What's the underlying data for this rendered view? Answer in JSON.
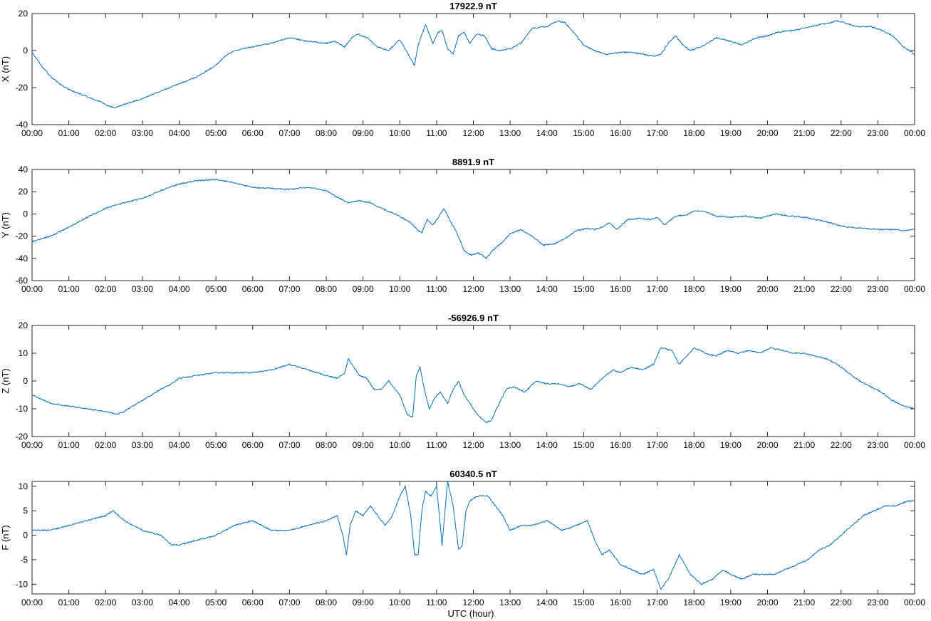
{
  "xlabel": "UTC (hour)",
  "line_color": "#0072BD",
  "chart_data": [
    {
      "type": "line",
      "title": "17922.9 nT",
      "ylabel": "X (nT)",
      "xlim": [
        0,
        24
      ],
      "ylim": [
        -40,
        20
      ],
      "yticks": [
        -40,
        -20,
        0,
        20
      ],
      "xticks": [
        "00:00",
        "01:00",
        "02:00",
        "03:00",
        "04:00",
        "05:00",
        "06:00",
        "07:00",
        "08:00",
        "09:00",
        "10:00",
        "11:00",
        "12:00",
        "13:00",
        "14:00",
        "15:00",
        "16:00",
        "17:00",
        "18:00",
        "19:00",
        "20:00",
        "21:00",
        "22:00",
        "23:00",
        "00:00"
      ],
      "series": [
        {
          "x": [
            0,
            0.25,
            0.5,
            0.75,
            1,
            1.5,
            1.9,
            2.1,
            2.25,
            2.5,
            3,
            3.5,
            4,
            4.5,
            5,
            5.25,
            5.5,
            6,
            6.5,
            7,
            7.5,
            8,
            8.25,
            8.5,
            8.7,
            8.85,
            9.1,
            9.4,
            9.7,
            10,
            10.4,
            10.5,
            10.7,
            10.9,
            11.05,
            11.15,
            11.3,
            11.45,
            11.6,
            11.75,
            11.9,
            12.1,
            12.3,
            12.5,
            12.7,
            13,
            13.3,
            13.6,
            14,
            14.3,
            14.5,
            14.8,
            15,
            15.3,
            15.6,
            16,
            16.3,
            16.6,
            16.9,
            17.1,
            17.3,
            17.5,
            17.7,
            17.9,
            18.3,
            18.6,
            19,
            19.3,
            19.7,
            20,
            20.3,
            20.7,
            21,
            21.4,
            21.7,
            21.9,
            22.1,
            22.4,
            22.8,
            23.1,
            23.4,
            23.7,
            24
          ],
          "y": [
            -1,
            -8,
            -14,
            -18,
            -21,
            -25,
            -28,
            -30,
            -31,
            -29,
            -26,
            -22,
            -18,
            -14,
            -8,
            -3,
            0,
            2,
            4,
            7,
            5,
            4,
            5,
            2,
            7,
            9,
            7,
            2,
            0,
            6,
            -8,
            3,
            14,
            4,
            10,
            11,
            1,
            -2,
            8,
            10,
            4,
            9,
            8,
            1,
            0,
            1,
            4,
            12,
            13,
            16,
            15,
            8,
            3,
            0,
            -2,
            -1,
            -1,
            -2,
            -3,
            -2,
            4,
            8,
            3,
            0,
            3,
            7,
            5,
            3,
            7,
            8,
            10,
            11,
            12,
            14,
            15,
            16,
            15,
            13,
            13,
            11,
            8,
            2,
            -2
          ]
        }
      ]
    },
    {
      "type": "line",
      "title": "8891.9 nT",
      "ylabel": "Y (nT)",
      "xlim": [
        0,
        24
      ],
      "ylim": [
        -60,
        40
      ],
      "yticks": [
        -60,
        -40,
        -20,
        0,
        20,
        40
      ],
      "xticks": [
        "00:00",
        "01:00",
        "02:00",
        "03:00",
        "04:00",
        "05:00",
        "06:00",
        "07:00",
        "08:00",
        "09:00",
        "10:00",
        "11:00",
        "12:00",
        "13:00",
        "14:00",
        "15:00",
        "16:00",
        "17:00",
        "18:00",
        "19:00",
        "20:00",
        "21:00",
        "22:00",
        "23:00",
        "00:00"
      ],
      "series": [
        {
          "x": [
            0,
            0.5,
            1,
            1.5,
            2,
            2.5,
            3,
            3.5,
            4,
            4.5,
            5,
            5.5,
            6,
            6.5,
            7,
            7.5,
            8,
            8.3,
            8.6,
            8.9,
            9.2,
            9.5,
            10,
            10.3,
            10.5,
            10.6,
            10.75,
            10.9,
            11.05,
            11.2,
            11.35,
            11.55,
            11.75,
            11.95,
            12.15,
            12.35,
            12.55,
            12.8,
            13,
            13.3,
            13.6,
            13.9,
            14.2,
            14.5,
            14.8,
            15.1,
            15.3,
            15.5,
            15.7,
            15.9,
            16.2,
            16.5,
            16.8,
            17,
            17.2,
            17.5,
            17.8,
            18,
            18.3,
            18.6,
            19,
            19.4,
            19.8,
            20.2,
            20.6,
            21,
            21.3,
            21.6,
            21.9,
            22.2,
            22.6,
            23,
            23.4,
            23.7,
            24
          ],
          "y": [
            -25,
            -20,
            -12,
            -3,
            5,
            10,
            14,
            21,
            27,
            30,
            31,
            28,
            24,
            23,
            22,
            24,
            21,
            15,
            10,
            12,
            10,
            5,
            -2,
            -8,
            -15,
            -17,
            -5,
            -10,
            -3,
            5,
            -5,
            -17,
            -33,
            -37,
            -35,
            -40,
            -32,
            -25,
            -18,
            -14,
            -20,
            -28,
            -27,
            -22,
            -15,
            -13,
            -14,
            -12,
            -8,
            -14,
            -5,
            -4,
            -5,
            -3,
            -10,
            -2,
            -1,
            3,
            2,
            -2,
            -3,
            -2,
            -4,
            0,
            -2,
            -3,
            -5,
            -7,
            -10,
            -12,
            -13,
            -14,
            -14,
            -15,
            -14
          ]
        }
      ]
    },
    {
      "type": "line",
      "title": "-56926.9 nT",
      "ylabel": "Z (nT)",
      "xlim": [
        0,
        24
      ],
      "ylim": [
        -20,
        20
      ],
      "yticks": [
        -20,
        -10,
        0,
        10,
        20
      ],
      "xticks": [
        "00:00",
        "01:00",
        "02:00",
        "03:00",
        "04:00",
        "05:00",
        "06:00",
        "07:00",
        "08:00",
        "09:00",
        "10:00",
        "11:00",
        "12:00",
        "13:00",
        "14:00",
        "15:00",
        "16:00",
        "17:00",
        "18:00",
        "19:00",
        "20:00",
        "21:00",
        "22:00",
        "23:00",
        "00:00"
      ],
      "series": [
        {
          "x": [
            0,
            0.5,
            1,
            1.5,
            2,
            2.3,
            2.5,
            3,
            3.5,
            3.8,
            4,
            4.5,
            5,
            5.5,
            6,
            6.5,
            7,
            7.5,
            8,
            8.3,
            8.5,
            8.6,
            8.75,
            8.9,
            9.1,
            9.3,
            9.5,
            9.7,
            10,
            10.2,
            10.35,
            10.45,
            10.55,
            10.65,
            10.8,
            10.95,
            11.1,
            11.3,
            11.45,
            11.6,
            11.75,
            11.9,
            12.1,
            12.35,
            12.5,
            12.7,
            12.9,
            13.1,
            13.4,
            13.7,
            14,
            14.3,
            14.6,
            14.9,
            15.2,
            15.5,
            15.8,
            16,
            16.3,
            16.6,
            16.9,
            17.1,
            17.4,
            17.6,
            17.8,
            18,
            18.3,
            18.6,
            18.9,
            19.2,
            19.5,
            19.8,
            20.1,
            20.4,
            20.7,
            21,
            21.3,
            21.6,
            21.9,
            22.2,
            22.5,
            22.8,
            23.1,
            23.4,
            23.7,
            24
          ],
          "y": [
            -5,
            -8,
            -9,
            -10,
            -11,
            -12,
            -11,
            -7,
            -3,
            -1,
            1,
            2,
            3,
            3,
            3,
            4,
            6,
            4,
            2,
            1,
            3,
            8,
            5,
            2,
            1,
            -3,
            -3,
            0,
            -5,
            -12,
            -13,
            2,
            5,
            -2,
            -10,
            -6,
            -4,
            -8,
            -3,
            0,
            -5,
            -8,
            -12,
            -15,
            -14,
            -8,
            -3,
            -2,
            -4,
            0,
            -1,
            -1,
            -2,
            -1,
            -3,
            1,
            4,
            3,
            5,
            4,
            6,
            12,
            11,
            6,
            9,
            12,
            10,
            9,
            11,
            10,
            11,
            10,
            12,
            11,
            10,
            10,
            9,
            8,
            6,
            3,
            0,
            -2,
            -4,
            -7,
            -9,
            -10
          ]
        }
      ]
    },
    {
      "type": "line",
      "title": "60340.5 nT",
      "ylabel": "F (nT)",
      "xlim": [
        0,
        24
      ],
      "ylim": [
        -12,
        11
      ],
      "yticks": [
        -10,
        -5,
        0,
        5,
        10
      ],
      "xticks": [
        "00:00",
        "01:00",
        "02:00",
        "03:00",
        "04:00",
        "05:00",
        "06:00",
        "07:00",
        "08:00",
        "09:00",
        "10:00",
        "11:00",
        "12:00",
        "13:00",
        "14:00",
        "15:00",
        "16:00",
        "17:00",
        "18:00",
        "19:00",
        "20:00",
        "21:00",
        "22:00",
        "23:00",
        "00:00"
      ],
      "series": [
        {
          "x": [
            0,
            0.5,
            1,
            1.5,
            2,
            2.2,
            2.5,
            3,
            3.5,
            3.8,
            4,
            4.5,
            5,
            5.5,
            6,
            6.5,
            7,
            7.5,
            8,
            8.3,
            8.45,
            8.55,
            8.65,
            8.8,
            9,
            9.2,
            9.4,
            9.6,
            9.8,
            10,
            10.15,
            10.3,
            10.4,
            10.5,
            10.6,
            10.7,
            10.85,
            11,
            11.15,
            11.3,
            11.45,
            11.6,
            11.7,
            11.8,
            11.9,
            12.1,
            12.4,
            12.6,
            12.8,
            13,
            13.3,
            13.6,
            14,
            14.4,
            14.8,
            15.1,
            15.3,
            15.5,
            15.7,
            16,
            16.3,
            16.6,
            16.9,
            17.1,
            17.3,
            17.6,
            17.9,
            18.2,
            18.5,
            18.8,
            19,
            19.3,
            19.6,
            19.9,
            20.2,
            20.5,
            20.8,
            21.1,
            21.4,
            21.7,
            22,
            22.3,
            22.6,
            22.9,
            23.2,
            23.5,
            23.8,
            24
          ],
          "y": [
            1,
            1,
            2,
            3,
            4,
            5,
            3,
            1,
            0,
            -2,
            -2,
            -1,
            0,
            2,
            3,
            1,
            1,
            2,
            3,
            4,
            0,
            -4,
            2,
            5,
            4,
            6,
            4,
            2,
            4,
            8,
            10,
            4,
            -4,
            -4,
            5,
            9,
            8,
            10,
            -2,
            11,
            6,
            -3,
            -2,
            5,
            7,
            8,
            8,
            6,
            4,
            1,
            2,
            2,
            3,
            1,
            2,
            3,
            -1,
            -4,
            -3,
            -6,
            -7,
            -8,
            -7,
            -11,
            -9,
            -4,
            -8,
            -10,
            -9,
            -7,
            -8,
            -9,
            -8,
            -8,
            -8,
            -7,
            -6,
            -5,
            -3,
            -2,
            0,
            2,
            4,
            5,
            6,
            6,
            7,
            7
          ]
        }
      ]
    }
  ]
}
